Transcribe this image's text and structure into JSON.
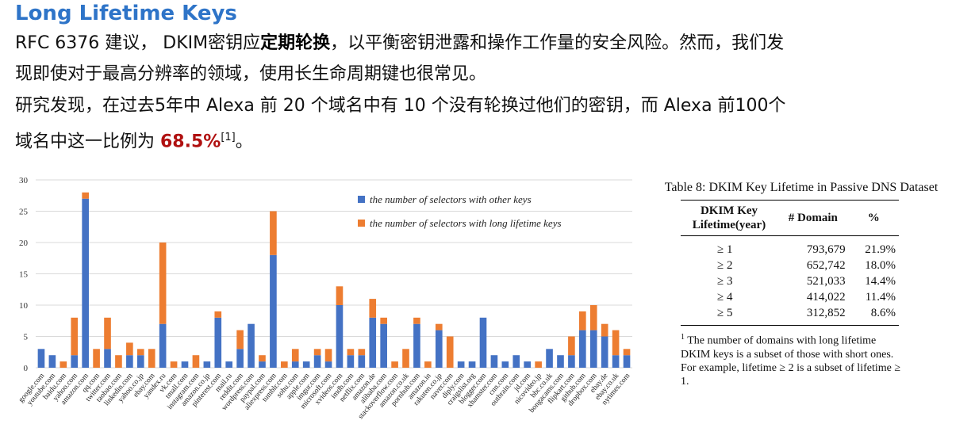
{
  "slide": {
    "title": "Long Lifetime Keys",
    "para1_a": "RFC 6376 建议， DKIM密钥应",
    "para1_bold": "定期轮换",
    "para1_b": "，以平衡密钥泄露和操作工作量的安全风险。然而，我们发",
    "para2": "现即使对于最高分辨率的领域，使用长生命周期键也很常见。",
    "para3": "研究发现，在过去5年中 Alexa 前 20 个域名中有 10 个没有轮换过他们的密钥，而 Alexa 前100个",
    "para4_a": "域名中这一比例为 ",
    "para4_pct": "68.5%",
    "para4_cite": "[1]",
    "para4_b": "。"
  },
  "chart_data": {
    "type": "bar",
    "stacked": true,
    "categories": [
      "google.com",
      "youtube.com",
      "baidu.com",
      "yahoo.com",
      "amazon.com",
      "qq.com",
      "twitter.com",
      "taobao.com",
      "linkedin.com",
      "yahoo.co.jp",
      "ebay.com",
      "yandex.ru",
      "vk.com",
      "tmall.com",
      "instagram.com",
      "amazon.co.jp",
      "pinterest.com",
      "mail.ru",
      "reddit.com",
      "wordpress.com",
      "paypal.com",
      "aliexpress.com",
      "tumblr.com",
      "sohu.com",
      "apple.com",
      "imgur.com",
      "microsoft.com",
      "xvideos.com",
      "imdb.com",
      "netflix.com",
      "amazon.de",
      "alibaba.com",
      "stackoverflow.com",
      "amazon.co.uk",
      "pornhub.com",
      "amazon.in",
      "rakuten.co.jp",
      "naver.com",
      "diply.com",
      "craigslist.org",
      "blogger.com",
      "xhamster.com",
      "cnn.com",
      "outbrain.com",
      "jd.com",
      "nicovideo.jp",
      "bbc.co.uk",
      "bongacams.com",
      "flipkart.com",
      "github.com",
      "dropbox.com",
      "ebay.de",
      "ebay.co.uk",
      "nytimes.com"
    ],
    "series": [
      {
        "name": "the number of selectors with other keys",
        "color": "#4472c4",
        "values": [
          3,
          2,
          0,
          2,
          27,
          0,
          3,
          0,
          2,
          2,
          0,
          7,
          0,
          1,
          0,
          1,
          8,
          1,
          3,
          7,
          1,
          18,
          0,
          1,
          1,
          2,
          1,
          10,
          2,
          2,
          8,
          7,
          0,
          0,
          7,
          0,
          6,
          0,
          1,
          1,
          8,
          2,
          1,
          2,
          1,
          0,
          3,
          2,
          2,
          6,
          6,
          5,
          2,
          2
        ]
      },
      {
        "name": "the number of selectors with long lifetime keys",
        "color": "#ed7d31",
        "values": [
          0,
          0,
          1,
          6,
          1,
          3,
          5,
          2,
          2,
          1,
          3,
          13,
          1,
          0,
          2,
          0,
          1,
          0,
          3,
          0,
          1,
          7,
          1,
          2,
          0,
          1,
          2,
          3,
          1,
          1,
          3,
          1,
          1,
          3,
          1,
          1,
          1,
          5,
          0,
          0,
          0,
          0,
          0,
          0,
          0,
          1,
          0,
          0,
          3,
          3,
          4,
          2,
          4,
          1
        ]
      }
    ],
    "ylim": [
      0,
      30
    ],
    "yticks": [
      0,
      5,
      10,
      15,
      20,
      25,
      30
    ],
    "grid": true,
    "legend_position": "top-right"
  },
  "table": {
    "caption": "Table 8:  DKIM Key Lifetime in Passive DNS Dataset",
    "headers": [
      "DKIM Key Lifetime(year)",
      "# Domain",
      "%"
    ],
    "rows": [
      [
        "≥ 1",
        "793,679",
        "21.9%"
      ],
      [
        "≥ 2",
        "652,742",
        "18.0%"
      ],
      [
        "≥ 3",
        "521,033",
        "14.4%"
      ],
      [
        "≥ 4",
        "414,022",
        "11.4%"
      ],
      [
        "≥ 5",
        "312,852",
        "8.6%"
      ]
    ],
    "note_mark": "1",
    "note": "The number of domains with long lifetime DKIM keys is a subset of those with short ones. For example, lifetime ≥ 2 is a subset of lifetime ≥ 1."
  }
}
